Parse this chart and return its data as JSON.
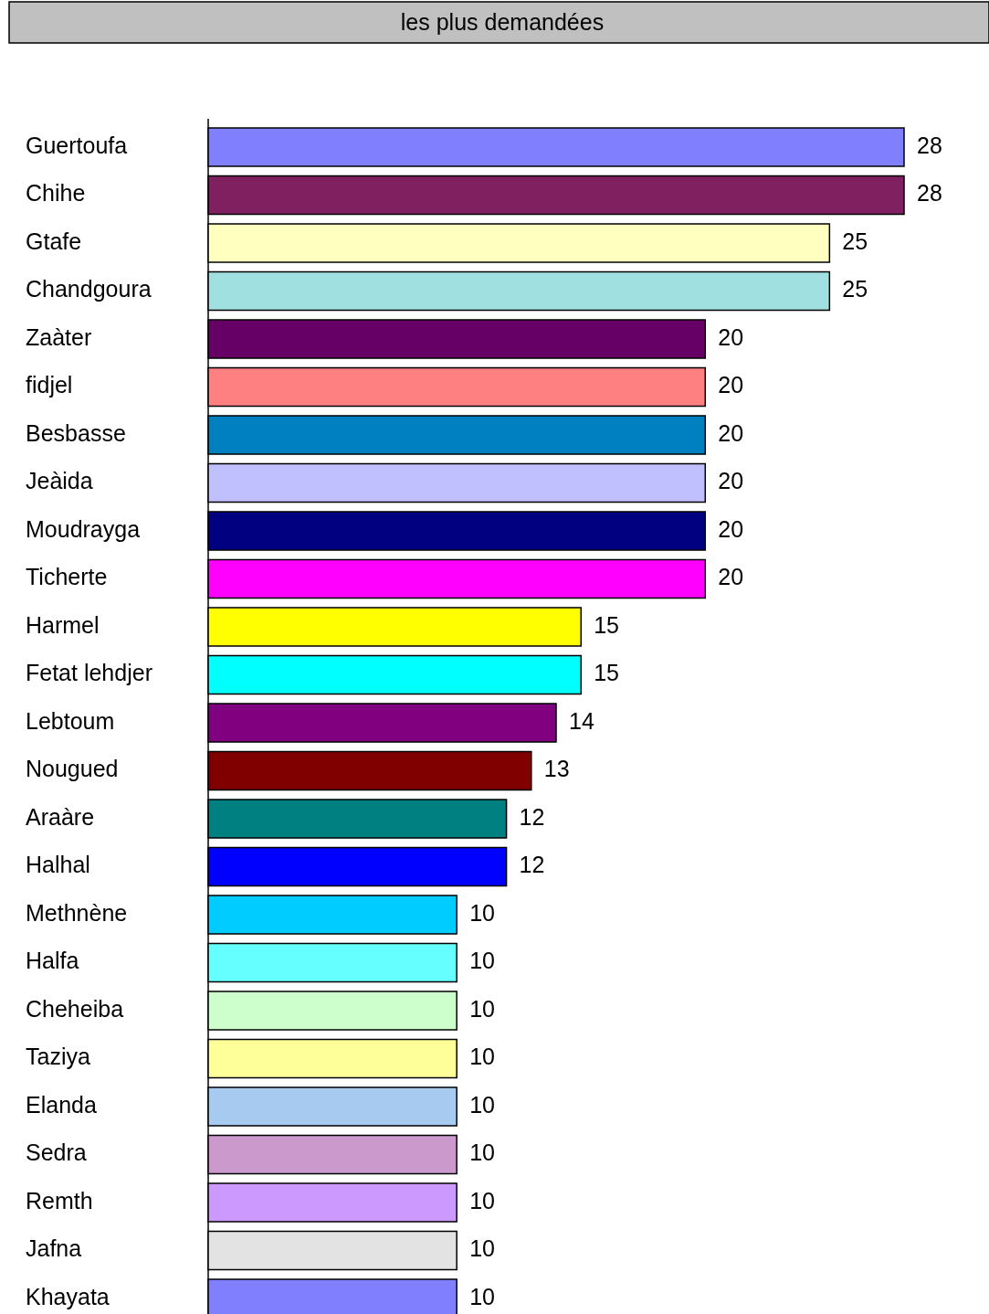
{
  "chart_data": {
    "type": "bar",
    "orientation": "horizontal",
    "title": "les plus demandées",
    "categories": [
      "Guertoufa",
      "Chihe",
      "Gtafe",
      "Chandgoura",
      "Zaàter",
      "fidjel",
      "Besbasse",
      "Jeàida",
      "Moudrayga",
      "Ticherte",
      "Harmel",
      "Fetat lehdjer",
      "Lebtoum",
      "Nougued",
      "Araàre",
      "Halhal",
      "Methnène",
      "Halfa",
      "Cheheiba",
      "Taziya",
      "Elanda",
      "Sedra",
      "Remth",
      "Jafna",
      "Khayata"
    ],
    "values": [
      28,
      28,
      25,
      25,
      20,
      20,
      20,
      20,
      20,
      20,
      15,
      15,
      14,
      13,
      12,
      12,
      10,
      10,
      10,
      10,
      10,
      10,
      10,
      10,
      10
    ],
    "colors": [
      "#8080ff",
      "#802060",
      "#ffffc0",
      "#a0e0e0",
      "#660066",
      "#ff8080",
      "#0080c0",
      "#c0c0ff",
      "#000080",
      "#ff00ff",
      "#ffff00",
      "#00ffff",
      "#800080",
      "#800000",
      "#008080",
      "#0000ff",
      "#00ccff",
      "#66ffff",
      "#ccffcc",
      "#ffff99",
      "#a6caf0",
      "#cc99cc",
      "#cc99ff",
      "#e3e3e3",
      "#8080ff"
    ],
    "data_labels": true
  }
}
